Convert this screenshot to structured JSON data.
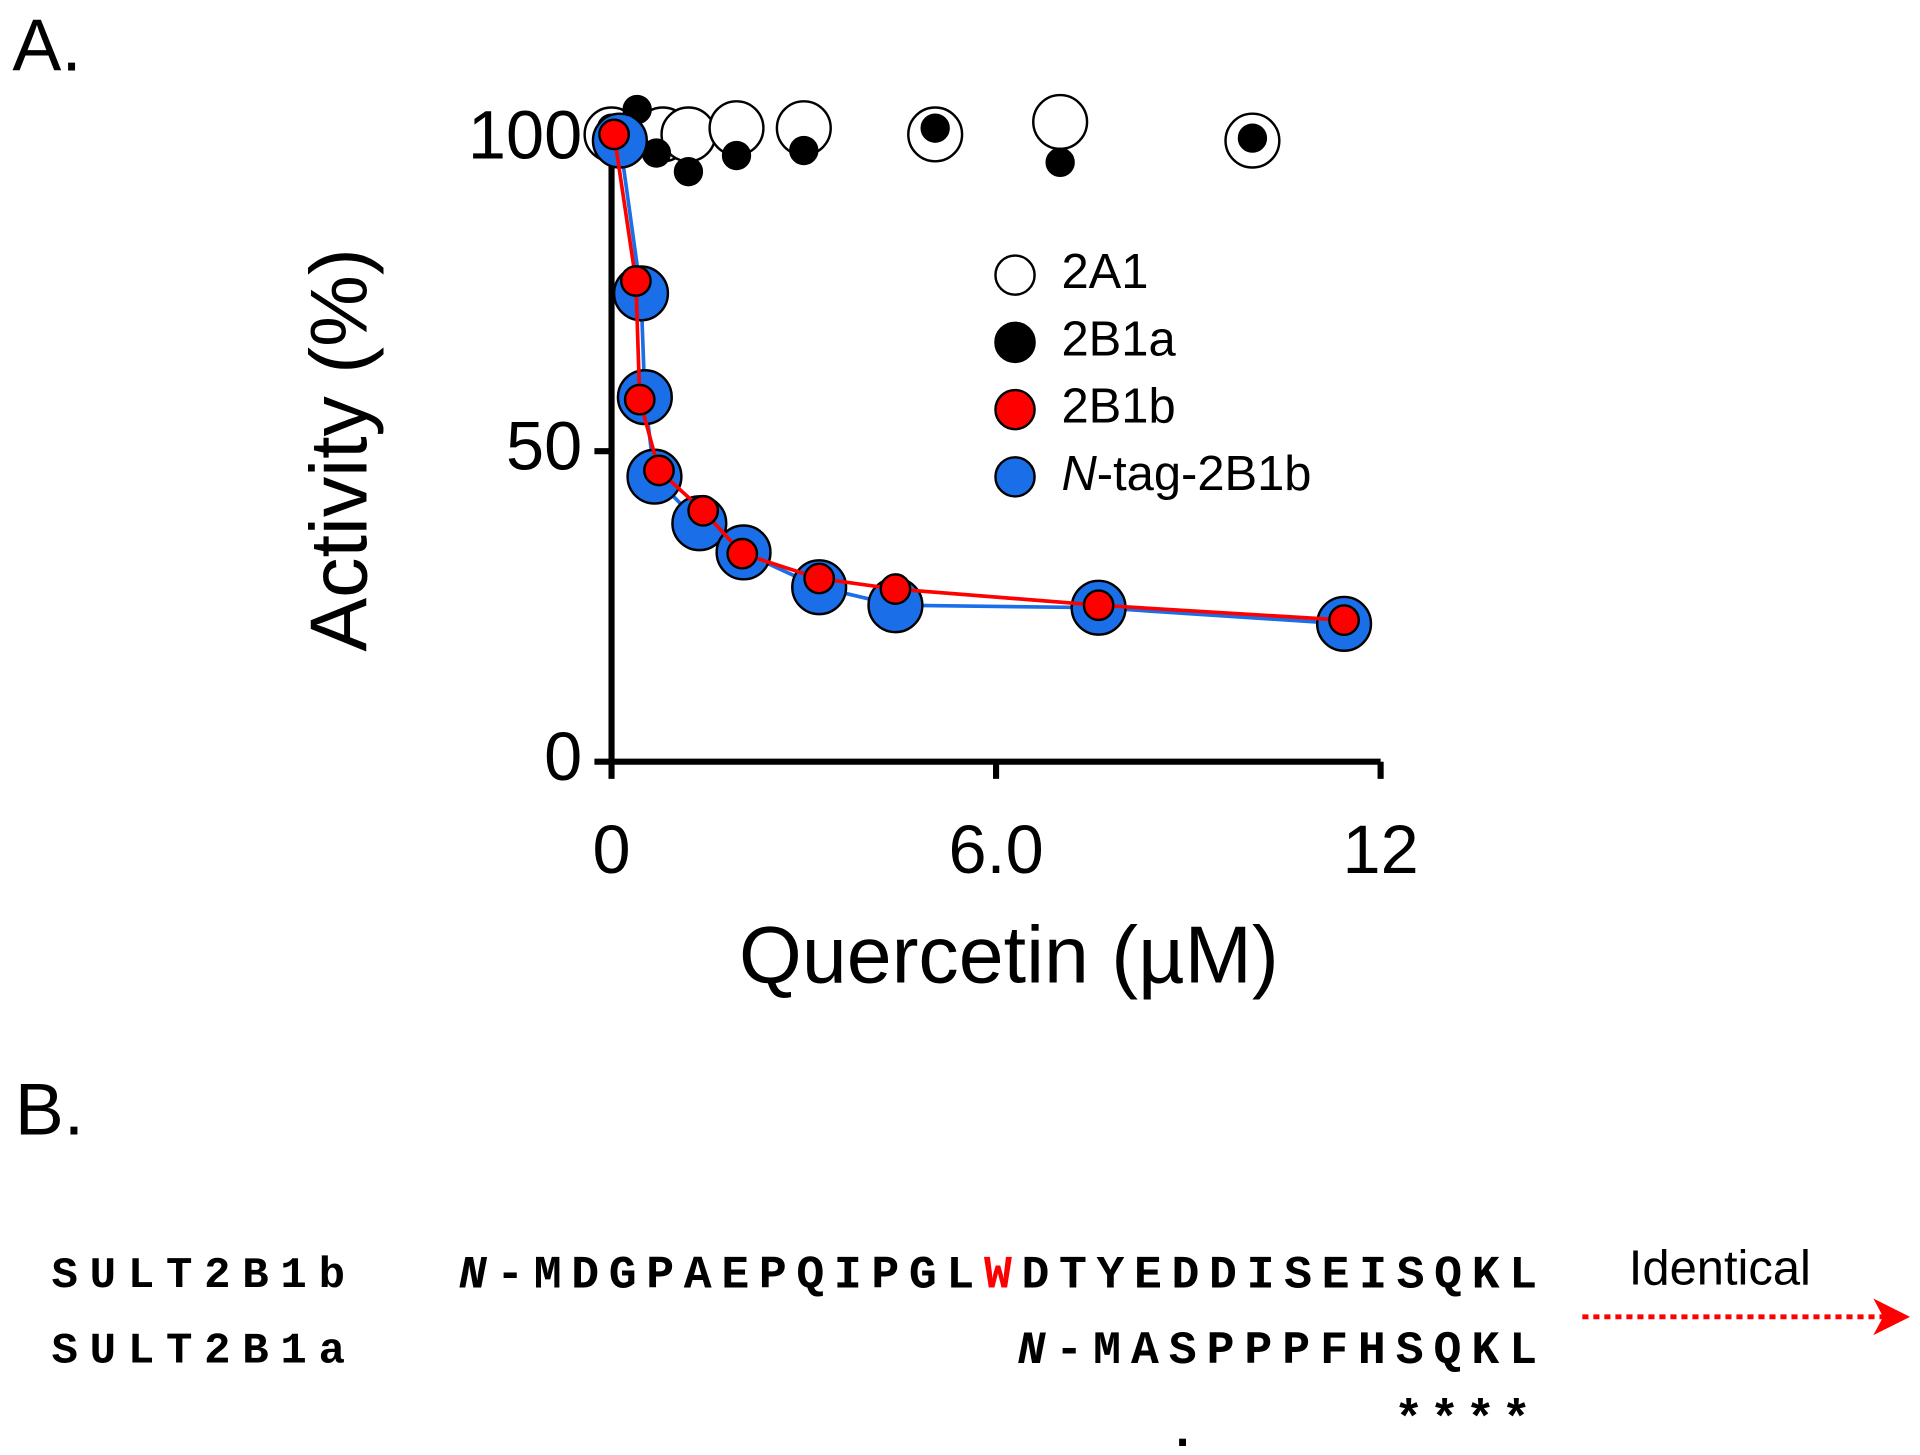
{
  "panel_a": {
    "label": "A."
  },
  "chart_data": {
    "type": "scatter",
    "xlabel": "Quercetin (µM)",
    "ylabel": "Activity (%)",
    "xlim": [
      0,
      12
    ],
    "ylim": [
      0,
      100
    ],
    "xticks": [
      0,
      {
        "value": 6,
        "label": "6.0"
      },
      12
    ],
    "yticks": [
      0,
      50,
      100
    ],
    "series": [
      {
        "name": "2A1",
        "color": "#ffffff",
        "line": false,
        "x": [
          0,
          0.8,
          1.2,
          1.95,
          3,
          5.05,
          7,
          10
        ],
        "values": [
          101,
          101,
          101,
          102,
          102,
          101,
          103,
          100
        ]
      },
      {
        "name": "2B1a",
        "color": "#000000",
        "line": false,
        "x": [
          0,
          0.4,
          0.7,
          1.2,
          1.95,
          3,
          5.05,
          7,
          10
        ],
        "values": [
          102,
          105,
          98,
          95,
          97.6,
          98.4,
          102,
          96.5,
          100.4
        ]
      },
      {
        "name": "N-tag-2B1b",
        "color": "#1a6fe8",
        "line": true,
        "x": [
          0.13,
          0.46,
          0.52,
          0.67,
          1.37,
          2.06,
          3.24,
          4.43,
          7.6,
          11.43
        ],
        "values": [
          100,
          75.4,
          58.7,
          45.9,
          38.4,
          33.7,
          28.1,
          25.2,
          24.8,
          22.2
        ]
      },
      {
        "name": "2B1b",
        "color": "#ff0000",
        "line": true,
        "x": [
          0.04,
          0.38,
          0.44,
          0.74,
          1.43,
          2.04,
          3.24,
          4.43,
          7.6,
          11.43
        ],
        "values": [
          101,
          77.4,
          58.3,
          46.9,
          40.4,
          33.5,
          29.5,
          27.8,
          25.2,
          22.8
        ]
      }
    ],
    "legend_order": [
      "2A1",
      "2B1a",
      "2B1b",
      "N-tag-2B1b"
    ]
  },
  "panel_b": {
    "label": "B.",
    "rows": [
      {
        "name": "SULT2B1b",
        "sequence": "N-MDGPAEPQIPGLWDTYEDDISEISQKL",
        "highlight": {
          "index": 14,
          "color": "#ff0000"
        }
      },
      {
        "name": "SULT2B1a",
        "sequence": "N-MASPPPFHSQKL"
      }
    ],
    "conservation_stars": "****",
    "conservation_dot": ".",
    "note": "Identical"
  }
}
